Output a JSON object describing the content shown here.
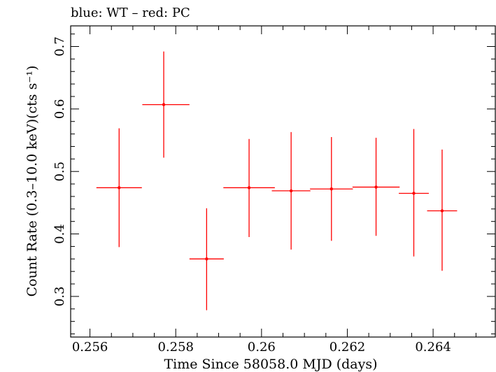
{
  "chart_data": {
    "type": "scatter",
    "title": "blue: WT – red: PC",
    "xlabel": "Time Since 58058.0 MJD (days)",
    "ylabel": "Count Rate (0.3–10.0 keV)(cts s⁻¹)",
    "xlim": [
      0.25555,
      0.26545
    ],
    "ylim": [
      0.235,
      0.733
    ],
    "x_ticks": [
      0.256,
      0.258,
      0.26,
      0.262,
      0.264
    ],
    "x_tick_labels": [
      "0.256",
      "0.258",
      "0.26",
      "0.262",
      "0.264"
    ],
    "y_ticks": [
      0.3,
      0.4,
      0.5,
      0.6,
      0.7
    ],
    "y_tick_labels": [
      "0.3",
      "0.4",
      "0.5",
      "0.6",
      "0.7"
    ],
    "series": [
      {
        "color": "#ff0000",
        "points": [
          {
            "x": 0.25668,
            "y": 0.474,
            "xerr_lo": 0.00053,
            "xerr_hi": 0.00053,
            "y_lo": 0.379,
            "y_hi": 0.569
          },
          {
            "x": 0.25772,
            "y": 0.607,
            "xerr_lo": 0.0005,
            "xerr_hi": 0.0006,
            "y_lo": 0.522,
            "y_hi": 0.692
          },
          {
            "x": 0.25872,
            "y": 0.36,
            "xerr_lo": 0.0004,
            "xerr_hi": 0.0004,
            "y_lo": 0.278,
            "y_hi": 0.441
          },
          {
            "x": 0.25971,
            "y": 0.474,
            "xerr_lo": 0.0006,
            "xerr_hi": 0.0006,
            "y_lo": 0.395,
            "y_hi": 0.552
          },
          {
            "x": 0.26069,
            "y": 0.469,
            "xerr_lo": 0.00045,
            "xerr_hi": 0.00045,
            "y_lo": 0.375,
            "y_hi": 0.563
          },
          {
            "x": 0.26163,
            "y": 0.472,
            "xerr_lo": 0.0005,
            "xerr_hi": 0.0005,
            "y_lo": 0.389,
            "y_hi": 0.555
          },
          {
            "x": 0.26267,
            "y": 0.475,
            "xerr_lo": 0.00055,
            "xerr_hi": 0.00055,
            "y_lo": 0.397,
            "y_hi": 0.554
          },
          {
            "x": 0.26355,
            "y": 0.465,
            "xerr_lo": 0.00035,
            "xerr_hi": 0.00035,
            "y_lo": 0.364,
            "y_hi": 0.568
          },
          {
            "x": 0.26421,
            "y": 0.437,
            "xerr_lo": 0.00035,
            "xerr_hi": 0.00035,
            "y_lo": 0.341,
            "y_hi": 0.535
          }
        ]
      }
    ]
  }
}
